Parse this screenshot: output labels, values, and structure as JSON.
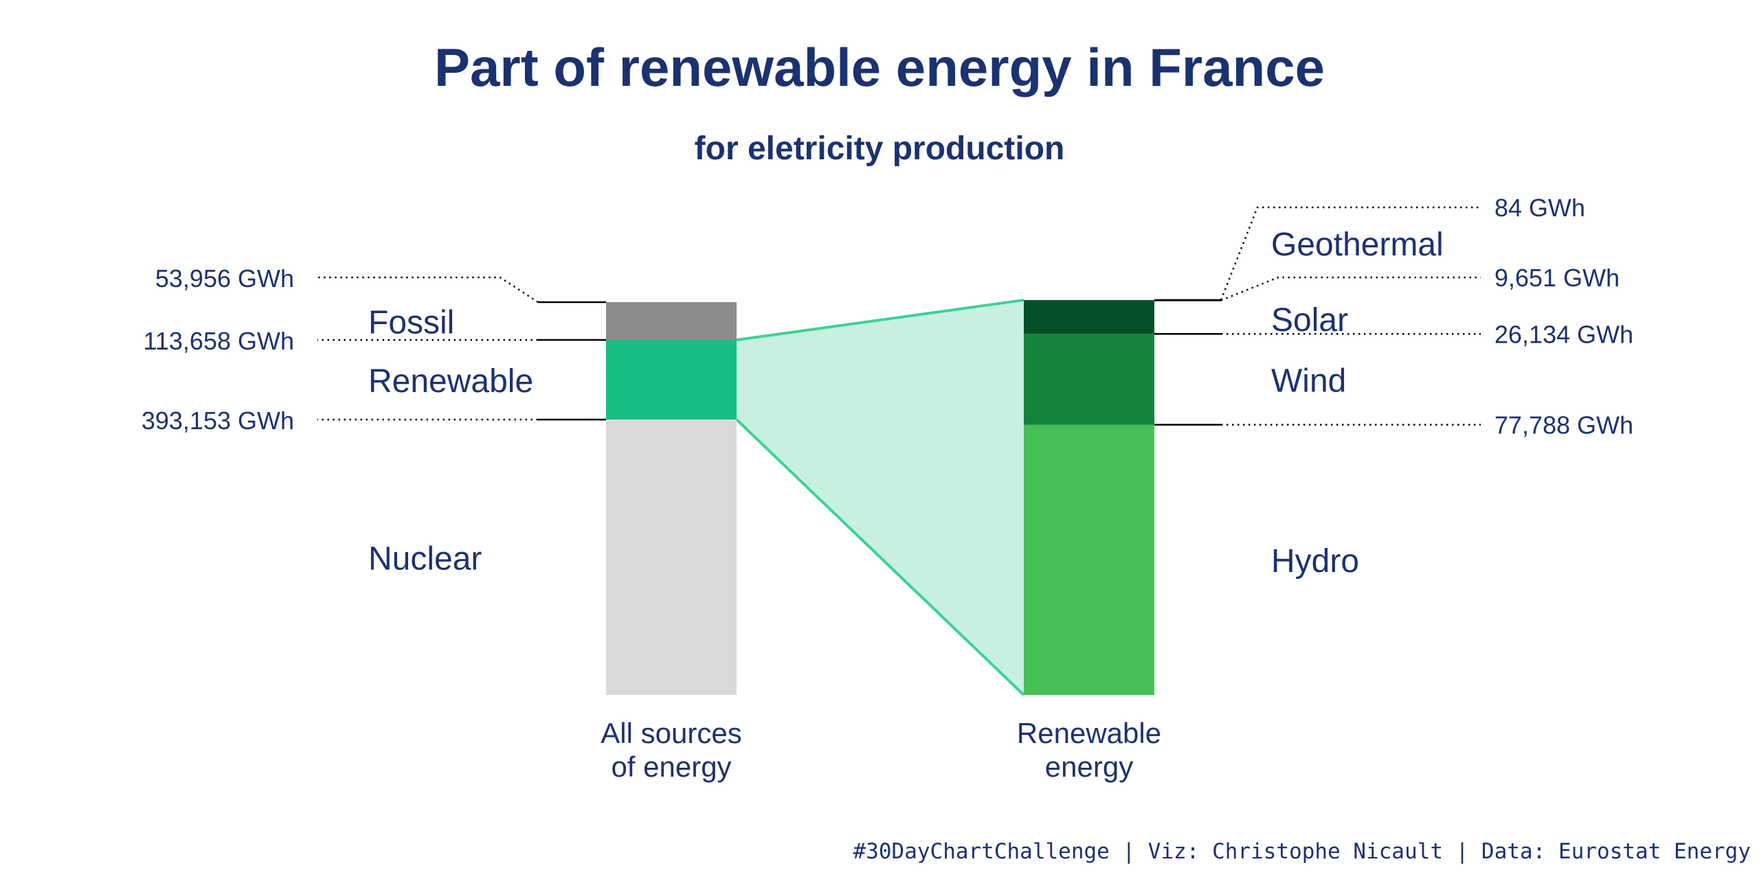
{
  "chart_data": {
    "type": "bar",
    "title": "Part of renewable energy in France",
    "subtitle": "for eletricity production",
    "unit": "GWh",
    "caption": "#30DayChartChallenge | Viz: Christophe Nicault | Data: Eurostat Energy",
    "bars": [
      {
        "name": "All sources of energy",
        "label_lines": [
          "All sources",
          "of energy"
        ],
        "segments": [
          {
            "name": "Nuclear",
            "value": 393153,
            "value_label": "393,153 GWh",
            "color": "#d9d9d9"
          },
          {
            "name": "Renewable",
            "value": 113658,
            "value_label": "113,658 GWh",
            "color": "#17bd82"
          },
          {
            "name": "Fossil",
            "value": 53956,
            "value_label": "53,956 GWh",
            "color": "#8c8c8c"
          }
        ]
      },
      {
        "name": "Renewable energy",
        "label_lines": [
          "Renewable",
          "energy"
        ],
        "segments": [
          {
            "name": "Hydro",
            "value": 77788,
            "value_label": "77,788 GWh",
            "color": "#46bf57"
          },
          {
            "name": "Wind",
            "value": 26134,
            "value_label": "26,134 GWh",
            "color": "#17823b"
          },
          {
            "name": "Solar",
            "value": 9651,
            "value_label": "9,651 GWh",
            "color": "#045029"
          },
          {
            "name": "Geothermal",
            "value": 84,
            "value_label": "84 GWh",
            "color": "#003a1d"
          }
        ]
      }
    ],
    "colors": {
      "text": "#1b3270",
      "zoom_fill": "#c7f0e1",
      "zoom_stroke": "#3cd195",
      "leader": "#000000"
    }
  }
}
